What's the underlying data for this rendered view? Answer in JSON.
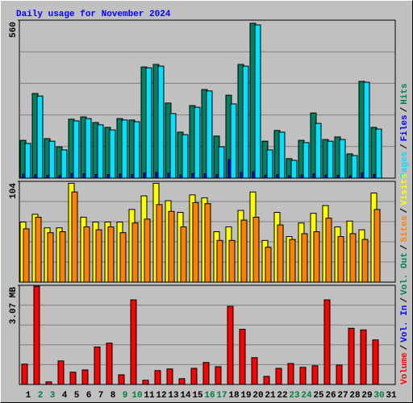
{
  "title": "Daily usage for November 2024",
  "legend_separator": "/",
  "days": [
    1,
    2,
    3,
    4,
    5,
    6,
    7,
    8,
    9,
    10,
    11,
    12,
    13,
    14,
    15,
    16,
    17,
    18,
    19,
    20,
    21,
    22,
    23,
    24,
    25,
    26,
    27,
    28,
    29,
    30,
    31
  ],
  "weekend": [
    false,
    true,
    true,
    false,
    false,
    false,
    false,
    false,
    true,
    true,
    false,
    false,
    false,
    false,
    false,
    true,
    true,
    false,
    false,
    false,
    false,
    false,
    true,
    true,
    false,
    false,
    false,
    false,
    false,
    true,
    false
  ],
  "weekday_color": "#000000",
  "weekend_color": "#008040",
  "title_color": "#0000ff",
  "chart_data": [
    {
      "type": "bar",
      "ylim": [
        0,
        560
      ],
      "yticks": [
        560
      ],
      "grid_lines": [
        112,
        224,
        336,
        448
      ],
      "series": [
        {
          "name": "Hits",
          "color": "#008060",
          "values": [
            134,
            300,
            140,
            111,
            209,
            217,
            197,
            180,
            211,
            206,
            394,
            403,
            266,
            163,
            257,
            314,
            149,
            294,
            403,
            549,
            131,
            169,
            69,
            134,
            231,
            137,
            146,
            86,
            343,
            180,
            0
          ]
        },
        {
          "name": "Files",
          "color": "#0000ff",
          "values": [
            14,
            12,
            10,
            9,
            16,
            15,
            13,
            12,
            14,
            13,
            18,
            20,
            17,
            11,
            16,
            15,
            12,
            66,
            20,
            22,
            10,
            12,
            8,
            11,
            15,
            11,
            10,
            8,
            18,
            13,
            0
          ]
        },
        {
          "name": "Pages",
          "color": "#00e0ff",
          "values": [
            123,
            291,
            131,
            100,
            203,
            211,
            189,
            171,
            206,
            200,
            391,
            397,
            229,
            154,
            251,
            309,
            111,
            263,
            397,
            543,
            100,
            163,
            63,
            126,
            194,
            131,
            137,
            80,
            340,
            174,
            0
          ]
        }
      ]
    },
    {
      "type": "bar",
      "ylim": [
        0,
        104
      ],
      "yticks": [
        104
      ],
      "grid_lines": [
        20.8,
        41.6,
        62.4,
        83.2
      ],
      "series": [
        {
          "name": "Visits",
          "color": "#ffff00",
          "values": [
            62,
            70,
            56,
            56,
            102,
            67,
            62,
            62,
            62,
            75,
            89,
            102,
            84,
            72,
            90,
            87,
            52,
            57,
            74,
            93,
            43,
            72,
            47,
            61,
            71,
            79,
            57,
            63,
            54,
            92,
            0
          ]
        },
        {
          "name": "Sites",
          "color": "#ff8000",
          "values": [
            55,
            67,
            51,
            52,
            93,
            57,
            54,
            57,
            51,
            61,
            65,
            80,
            73,
            57,
            82,
            81,
            43,
            43,
            64,
            67,
            36,
            59,
            44,
            50,
            52,
            66,
            47,
            50,
            44,
            75,
            0
          ]
        }
      ]
    },
    {
      "type": "bar",
      "ylim": [
        0,
        3.07
      ],
      "yticks": [
        {
          "value": 3.07,
          "label": "3.07 MB"
        }
      ],
      "grid_lines": [
        0.614,
        1.228,
        1.842,
        2.456
      ],
      "series": [
        {
          "name": "Volume",
          "color": "#ff0000",
          "values": [
            0.63,
            3.04,
            0.08,
            0.73,
            0.38,
            0.45,
            1.16,
            1.28,
            0.3,
            2.62,
            0.13,
            0.43,
            0.48,
            0.18,
            0.5,
            0.68,
            0.55,
            2.42,
            1.71,
            0.83,
            0.25,
            0.5,
            0.65,
            0.53,
            0.58,
            2.62,
            0.6,
            1.74,
            1.69,
            1.38,
            0
          ]
        }
      ],
      "extra_legend": [
        {
          "name": "Vol. In",
          "color": "#0000ff"
        },
        {
          "name": "Vol. Out",
          "color": "#008060"
        }
      ]
    }
  ]
}
